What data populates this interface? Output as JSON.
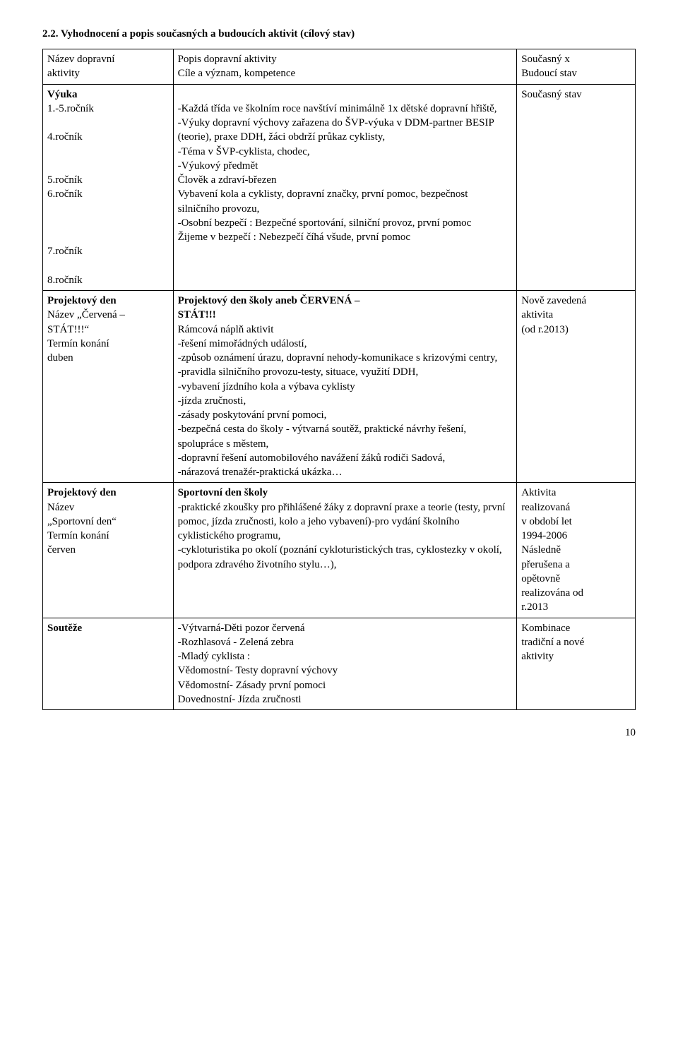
{
  "heading": "2.2.    Vyhodnocení a popis současných a budoucích aktivit (cílový stav)",
  "header": {
    "col1": [
      "Název dopravní",
      "aktivity"
    ],
    "col2": [
      "Popis dopravní aktivity",
      "Cíle a význam, kompetence"
    ],
    "col3": [
      "Současný x",
      "Budoucí stav"
    ]
  },
  "row1": {
    "label_bold": "Výuka",
    "labels": [
      "1.-5.ročník",
      "",
      "4.ročník",
      "",
      "",
      "5.ročník",
      "6.ročník",
      "",
      "",
      "",
      "7.ročník",
      "",
      "8.ročník"
    ],
    "desc": [
      "",
      "-Každá třída ve školním roce navštíví minimálně 1x dětské dopravní hřiště,",
      "-Výuky dopravní výchovy zařazena do ŠVP-výuka v DDM-partner BESIP (teorie), praxe DDH, žáci obdrží průkaz cyklisty,",
      "-Téma v  ŠVP-cyklista, chodec,",
      "-Výukový předmět",
      "Člověk a zdraví-březen",
      "Vybavení kola a cyklisty, dopravní značky, první pomoc, bezpečnost silničního provozu,",
      "-Osobní bezpečí : Bezpečné sportování, silniční provoz, první pomoc",
      "Žijeme v bezpečí : Nebezpečí číhá všude, první pomoc"
    ],
    "right": "Současný stav"
  },
  "row2": {
    "label_bold": "Projektový den",
    "label_rest": [
      "Název „Červená –",
      "STÁT!!!“",
      "Termín konání",
      "duben"
    ],
    "desc_bold": [
      "Projektový den školy aneb ČERVENÁ –",
      "STÁT!!!"
    ],
    "desc": [
      "Rámcová náplň aktivit",
      "-řešení mimořádných událostí,",
      "-způsob oznámení úrazu, dopravní nehody-komunikace s krizovými centry,",
      "-pravidla silničního provozu-testy, situace, využití DDH,",
      "-vybavení jízdního kola a výbava cyklisty",
      "-jízda zručnosti,",
      "-zásady poskytování první pomoci,",
      "-bezpečná cesta do školy - výtvarná soutěž, praktické návrhy řešení, spolupráce s městem,",
      "-dopravní řešení automobilového navážení žáků rodiči Sadová,",
      "-nárazová trenažér-praktická ukázka…"
    ],
    "right": [
      "Nově zavedená",
      "aktivita",
      "(od r.2013)"
    ]
  },
  "row3": {
    "label_bold": "Projektový den",
    "label_rest": [
      "Název",
      "„Sportovní den“",
      "Termín konání",
      "červen"
    ],
    "desc_bold": "Sportovní den školy",
    "desc": [
      "-praktické zkoušky pro přihlášené žáky z dopravní praxe a teorie (testy, první pomoc, jízda zručnosti, kolo a jeho vybavení)-pro vydání školního cyklistického programu,",
      "-cykloturistika po okolí (poznání cykloturistických tras, cyklostezky v okolí, podpora zdravého životního stylu…),"
    ],
    "right": [
      "Aktivita",
      "realizovaná",
      "v období let",
      "1994-2006",
      "Následně",
      "přerušena a",
      "opětovně",
      "realizována od",
      "r.2013"
    ]
  },
  "row4": {
    "label_bold": "Soutěže",
    "desc": [
      "-Výtvarná-Děti pozor červená",
      "-Rozhlasová - Zelená zebra",
      "-Mladý cyklista :",
      "Vědomostní- Testy dopravní výchovy",
      "Vědomostní- Zásady první pomoci",
      "Dovednostní- Jízda zručnosti"
    ],
    "right": [
      "Kombinace",
      "tradiční a nové",
      "aktivity"
    ]
  },
  "pagenum": "10"
}
